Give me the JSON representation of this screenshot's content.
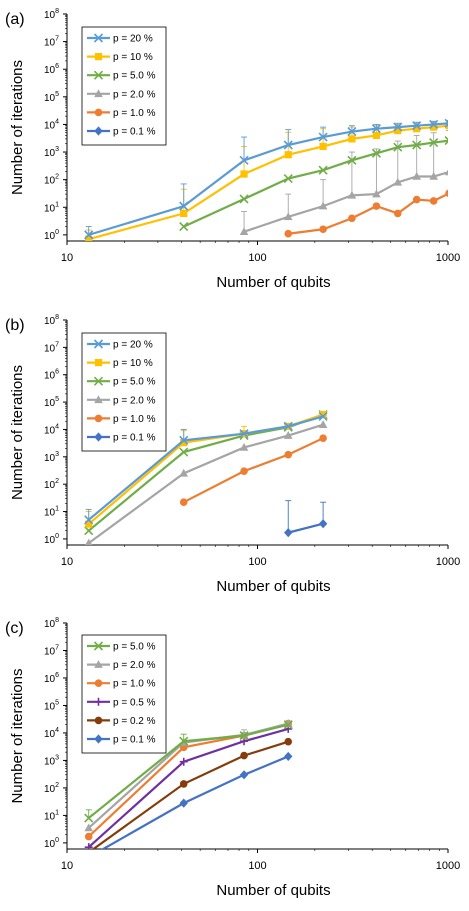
{
  "chart_data": [
    {
      "type": "line",
      "panel_label": "(a)",
      "xlabel": "Number of qubits",
      "ylabel": "Number of iterations",
      "x_scale": "log",
      "y_scale": "log",
      "xlim": [
        10,
        1000
      ],
      "ylim": [
        0.6,
        100000000
      ],
      "x_ticks": [
        "10",
        "100",
        "1000"
      ],
      "y_ticks": [
        {
          "base": "10",
          "exp": "0"
        },
        {
          "base": "10",
          "exp": "1"
        },
        {
          "base": "10",
          "exp": "2"
        },
        {
          "base": "10",
          "exp": "3"
        },
        {
          "base": "10",
          "exp": "4"
        },
        {
          "base": "10",
          "exp": "5"
        },
        {
          "base": "10",
          "exp": "6"
        },
        {
          "base": "10",
          "exp": "7"
        },
        {
          "base": "10",
          "exp": "8"
        }
      ],
      "legend_position": "top-left",
      "series": [
        {
          "name": "p = 20 %",
          "color": "#5b9bd5",
          "marker": "x",
          "x": [
            13,
            41,
            85,
            145,
            221,
            313,
            421,
            545,
            685,
            841,
            1013
          ],
          "y": [
            1,
            11,
            500,
            1800,
            3500,
            5500,
            7000,
            8000,
            9000,
            10000,
            11000
          ],
          "err_up": [
            2,
            70,
            3500,
            6500,
            8000,
            9000,
            10000,
            11000,
            12000,
            13000,
            14000
          ]
        },
        {
          "name": "p = 10 %",
          "color": "#ffc000",
          "marker": "square",
          "x": [
            13,
            41,
            85,
            145,
            221,
            313,
            421,
            545,
            685,
            841,
            1013
          ],
          "y": [
            0.7,
            6,
            160,
            800,
            1600,
            3000,
            4000,
            6000,
            7000,
            8000,
            9000
          ],
          "err_up": [
            1.5,
            45,
            1600,
            5200,
            7000,
            8000,
            9000,
            10000,
            11000,
            12000,
            13000
          ]
        },
        {
          "name": "p = 5.0 %",
          "color": "#70ad47",
          "marker": "x",
          "x": [
            41,
            85,
            145,
            221,
            313,
            421,
            545,
            685,
            841,
            1013
          ],
          "y": [
            2,
            20,
            110,
            220,
            500,
            900,
            1500,
            1800,
            2200,
            2600
          ],
          "err_up": [
            null,
            null,
            null,
            null,
            null,
            null,
            null,
            null,
            null,
            null
          ]
        },
        {
          "name": "p = 2.0 %",
          "color": "#a5a5a5",
          "marker": "triangle",
          "x": [
            85,
            145,
            221,
            313,
            421,
            545,
            685,
            841,
            1013
          ],
          "y": [
            1.3,
            4.5,
            11,
            27,
            30,
            80,
            130,
            130,
            190
          ],
          "err_up": [
            7,
            30,
            100,
            1000,
            1300,
            2500,
            4000,
            5000,
            6000
          ]
        },
        {
          "name": "p = 1.0 %",
          "color": "#ed7d31",
          "marker": "circle",
          "x": [
            145,
            221,
            313,
            421,
            545,
            685,
            841,
            1013
          ],
          "y": [
            1.1,
            1.6,
            4,
            11,
            6,
            19,
            17,
            32
          ],
          "err_up": [
            null,
            null,
            null,
            null,
            null,
            null,
            null,
            null
          ]
        },
        {
          "name": "p = 0.1 %",
          "color": "#4472c4",
          "marker": "diamond",
          "x": [],
          "y": [],
          "err_up": []
        }
      ]
    },
    {
      "type": "line",
      "panel_label": "(b)",
      "xlabel": "Number of qubits",
      "ylabel": "Number of iterations",
      "x_scale": "log",
      "y_scale": "log",
      "xlim": [
        10,
        1000
      ],
      "ylim": [
        0.6,
        100000000
      ],
      "x_ticks": [
        "10",
        "100",
        "1000"
      ],
      "y_ticks": [
        {
          "base": "10",
          "exp": "0"
        },
        {
          "base": "10",
          "exp": "1"
        },
        {
          "base": "10",
          "exp": "2"
        },
        {
          "base": "10",
          "exp": "3"
        },
        {
          "base": "10",
          "exp": "4"
        },
        {
          "base": "10",
          "exp": "5"
        },
        {
          "base": "10",
          "exp": "6"
        },
        {
          "base": "10",
          "exp": "7"
        },
        {
          "base": "10",
          "exp": "8"
        }
      ],
      "legend_position": "top-left",
      "series": [
        {
          "name": "p = 20 %",
          "color": "#5b9bd5",
          "marker": "x",
          "x": [
            13,
            41,
            85,
            145,
            221
          ],
          "y": [
            5,
            4000,
            7000,
            13000,
            30000
          ],
          "err_up": [
            12,
            10000,
            null,
            null,
            null
          ]
        },
        {
          "name": "p = 10 %",
          "color": "#ffc000",
          "marker": "square",
          "x": [
            13,
            41,
            85,
            145,
            221
          ],
          "y": [
            3.5,
            3300,
            7000,
            13000,
            35000
          ],
          "err_up": [
            10,
            9000,
            13000,
            null,
            null
          ]
        },
        {
          "name": "p = 5.0 %",
          "color": "#70ad47",
          "marker": "x",
          "x": [
            13,
            41,
            85,
            145,
            221
          ],
          "y": [
            2,
            1500,
            6000,
            12000,
            35000
          ],
          "err_up": [
            null,
            null,
            null,
            null,
            null
          ]
        },
        {
          "name": "p = 2.0 %",
          "color": "#a5a5a5",
          "marker": "triangle",
          "x": [
            13,
            41,
            85,
            145,
            221
          ],
          "y": [
            0.7,
            250,
            2200,
            6000,
            15000
          ],
          "err_up": [
            null,
            null,
            null,
            null,
            null
          ]
        },
        {
          "name": "p = 1.0 %",
          "color": "#ed7d31",
          "marker": "circle",
          "x": [
            41,
            85,
            145,
            221
          ],
          "y": [
            22,
            300,
            1200,
            4800
          ],
          "err_up": [
            null,
            null,
            null,
            null
          ]
        },
        {
          "name": "p = 0.1 %",
          "color": "#4472c4",
          "marker": "diamond",
          "x": [
            145,
            221
          ],
          "y": [
            1.7,
            3.6
          ],
          "err_up": [
            25,
            22
          ]
        }
      ]
    },
    {
      "type": "line",
      "panel_label": "(c)",
      "xlabel": "Number of qubits",
      "ylabel": "Number of iterations",
      "x_scale": "log",
      "y_scale": "log",
      "xlim": [
        10,
        1000
      ],
      "ylim": [
        0.6,
        100000000
      ],
      "x_ticks": [
        "10",
        "100",
        "1000"
      ],
      "y_ticks": [
        {
          "base": "10",
          "exp": "0"
        },
        {
          "base": "10",
          "exp": "1"
        },
        {
          "base": "10",
          "exp": "2"
        },
        {
          "base": "10",
          "exp": "3"
        },
        {
          "base": "10",
          "exp": "4"
        },
        {
          "base": "10",
          "exp": "5"
        },
        {
          "base": "10",
          "exp": "6"
        },
        {
          "base": "10",
          "exp": "7"
        },
        {
          "base": "10",
          "exp": "8"
        }
      ],
      "legend_position": "top-left",
      "series": [
        {
          "name": "p = 5.0 %",
          "color": "#70ad47",
          "marker": "x",
          "x": [
            13,
            41,
            85,
            145
          ],
          "y": [
            8,
            5000,
            8000,
            20000
          ],
          "err_up": [
            16,
            9000,
            null,
            null
          ]
        },
        {
          "name": "p = 2.0 %",
          "color": "#a5a5a5",
          "marker": "triangle",
          "x": [
            13,
            41,
            85,
            145
          ],
          "y": [
            3.5,
            4500,
            8500,
            22000
          ],
          "err_up": [
            null,
            null,
            13000,
            null
          ]
        },
        {
          "name": "p = 1.0 %",
          "color": "#ed7d31",
          "marker": "circle",
          "x": [
            13,
            41,
            85,
            145
          ],
          "y": [
            1.7,
            3000,
            8000,
            22000
          ],
          "err_up": [
            null,
            null,
            null,
            null
          ]
        },
        {
          "name": "p = 0.5 %",
          "color": "#7030a0",
          "marker": "plus",
          "x": [
            13,
            41,
            85,
            145
          ],
          "y": [
            0.7,
            900,
            5000,
            14000
          ],
          "err_up": [
            null,
            null,
            null,
            null
          ]
        },
        {
          "name": "p = 0.2 %",
          "color": "#843c0c",
          "marker": "circle",
          "x": [
            13,
            41,
            85,
            145
          ],
          "y": [
            0.45,
            140,
            1500,
            4800
          ],
          "err_up": [
            null,
            null,
            null,
            null
          ]
        },
        {
          "name": "p = 0.1 %",
          "color": "#4472c4",
          "marker": "diamond",
          "x": [
            13,
            41,
            85,
            145
          ],
          "y": [
            0.3,
            28,
            300,
            1400
          ],
          "err_up": [
            null,
            null,
            null,
            null
          ]
        }
      ]
    }
  ]
}
